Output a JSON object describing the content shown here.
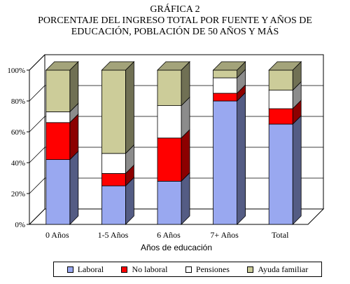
{
  "title_line1": "GRÁFICA 2",
  "title_line2": "PORCENTAJE DEL INGRESO TOTAL POR FUENTE Y AÑOS DE",
  "title_line3": "EDUCACIÓN, POBLACIÓN DE 50 AÑOS Y MÁS",
  "chart_data": {
    "type": "bar",
    "stacked": true,
    "three_d": true,
    "title": "GRÁFICA 2 PORCENTAJE DEL INGRESO TOTAL POR FUENTE Y AÑOS DE EDUCACIÓN, POBLACIÓN DE 50 AÑOS Y MÁS",
    "xlabel": "Años de educación",
    "ylabel": "",
    "ylim": [
      0,
      100
    ],
    "yticks": [
      "0%",
      "20%",
      "40%",
      "60%",
      "80%",
      "100%"
    ],
    "grid": true,
    "legend_position": "bottom",
    "categories": [
      "0 Años",
      "1-5 Años",
      "6 Años",
      "7+ Años",
      "Total"
    ],
    "series": [
      {
        "name": "Laboral",
        "color": "#99A8F0",
        "values": [
          42,
          25,
          28,
          80,
          65
        ]
      },
      {
        "name": "No laboral",
        "color": "#FF0000",
        "values": [
          24,
          8,
          28,
          5,
          10
        ]
      },
      {
        "name": "Pensiones",
        "color": "#FFFFFF",
        "values": [
          7,
          13,
          21,
          10,
          12
        ]
      },
      {
        "name": "Ayuda familiar",
        "color": "#CCCC99",
        "values": [
          27,
          54,
          23,
          5,
          13
        ]
      }
    ]
  }
}
